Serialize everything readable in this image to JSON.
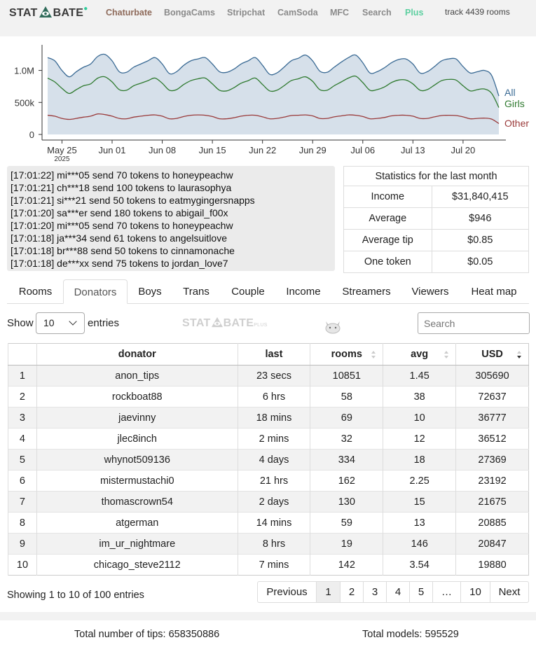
{
  "header": {
    "logo_text_left": "STAT",
    "logo_text_right": "BATE",
    "nav": [
      "Chaturbate",
      "BongaCams",
      "Stripchat",
      "CamSoda",
      "MFC",
      "Search",
      "Plus"
    ],
    "track_text": "track 4439 rooms"
  },
  "chart_data": {
    "type": "area",
    "x_ticks": [
      "May 25",
      "Jun 01",
      "Jun 08",
      "Jun 15",
      "Jun 22",
      "Jun 29",
      "Jul 06",
      "Jul 13",
      "Jul 20"
    ],
    "x_year": "2025",
    "y_ticks": [
      "1.0M",
      "500k",
      "0"
    ],
    "ylim": [
      0,
      1400000
    ],
    "x": [
      "May 23",
      "May 24",
      "May 25",
      "May 26",
      "May 27",
      "May 28",
      "May 29",
      "May 30",
      "May 31",
      "Jun 01",
      "Jun 02",
      "Jun 03",
      "Jun 04",
      "Jun 05",
      "Jun 06",
      "Jun 07",
      "Jun 08",
      "Jun 09",
      "Jun 10",
      "Jun 11",
      "Jun 12",
      "Jun 13",
      "Jun 14",
      "Jun 15",
      "Jun 16",
      "Jun 17",
      "Jun 18",
      "Jun 19",
      "Jun 20",
      "Jun 21",
      "Jun 22",
      "Jun 23",
      "Jun 24",
      "Jun 25",
      "Jun 26",
      "Jun 27",
      "Jun 28",
      "Jun 29",
      "Jun 30",
      "Jul 01",
      "Jul 02",
      "Jul 03",
      "Jul 04",
      "Jul 05",
      "Jul 06",
      "Jul 07",
      "Jul 08",
      "Jul 09",
      "Jul 10",
      "Jul 11",
      "Jul 12",
      "Jul 13",
      "Jul 14",
      "Jul 15",
      "Jul 16",
      "Jul 17",
      "Jul 18",
      "Jul 19",
      "Jul 20",
      "Jul 21",
      "Jul 22",
      "Jul 23",
      "Jul 24",
      "Jul 25"
    ],
    "series": [
      {
        "name": "All",
        "color": "#3a6a94",
        "values": [
          1200000,
          1150000,
          1000000,
          900000,
          980000,
          1050000,
          1100000,
          1220000,
          1250000,
          1150000,
          980000,
          970000,
          1050000,
          1100000,
          1150000,
          1200000,
          1100000,
          950000,
          980000,
          1080000,
          1150000,
          1180000,
          1200000,
          1100000,
          980000,
          970000,
          1020000,
          1100000,
          1150000,
          1200000,
          1080000,
          940000,
          960000,
          1050000,
          1150000,
          1190000,
          1240000,
          1150000,
          990000,
          970000,
          1050000,
          1130000,
          1200000,
          1240000,
          1120000,
          960000,
          980000,
          1040000,
          1120000,
          1170000,
          1180000,
          1100000,
          960000,
          980000,
          1060000,
          1150000,
          1180000,
          1180000,
          1060000,
          960000,
          980000,
          1000000,
          920000,
          600000
        ]
      },
      {
        "name": "Girls",
        "color": "#2f7a2f",
        "values": [
          880000,
          820000,
          720000,
          640000,
          700000,
          760000,
          790000,
          880000,
          900000,
          820000,
          700000,
          690000,
          760000,
          800000,
          840000,
          880000,
          800000,
          690000,
          700000,
          780000,
          840000,
          870000,
          880000,
          790000,
          690000,
          680000,
          730000,
          800000,
          840000,
          880000,
          780000,
          680000,
          690000,
          760000,
          840000,
          870000,
          900000,
          830000,
          700000,
          690000,
          760000,
          820000,
          880000,
          910000,
          810000,
          690000,
          700000,
          740000,
          810000,
          850000,
          850000,
          790000,
          690000,
          700000,
          770000,
          840000,
          860000,
          850000,
          760000,
          680000,
          700000,
          710000,
          640000,
          420000
        ]
      },
      {
        "name": "Other",
        "color": "#9a3a3a",
        "values": [
          300000,
          285000,
          250000,
          235000,
          250000,
          270000,
          285000,
          320000,
          310000,
          285000,
          250000,
          245000,
          270000,
          285000,
          300000,
          305000,
          285000,
          245000,
          250000,
          280000,
          300000,
          305000,
          300000,
          280000,
          245000,
          245000,
          260000,
          285000,
          300000,
          300000,
          275000,
          245000,
          250000,
          270000,
          295000,
          300000,
          305000,
          290000,
          250000,
          250000,
          275000,
          290000,
          305000,
          300000,
          280000,
          245000,
          250000,
          265000,
          290000,
          300000,
          300000,
          285000,
          250000,
          250000,
          275000,
          295000,
          300000,
          295000,
          275000,
          245000,
          250000,
          255000,
          240000,
          170000
        ]
      }
    ]
  },
  "feed": [
    "[17:01:22] mi***05 send 70 tokens to honeypeachw",
    "[17:01:21] ch***18 send 100 tokens to laurasophya",
    "[17:01:21] si***21 send 50 tokens to eatmygingersnapps",
    "[17:01:20] sa***er send 180 tokens to abigail_f00x",
    "[17:01:20] mi***05 send 70 tokens to honeypeachw",
    "[17:01:18] ja***34 send 61 tokens to angelsuitlove",
    "[17:01:18] br***88 send 50 tokens to cinnamonache",
    "[17:01:18] de***xx send 75 tokens to jordan_love7"
  ],
  "stats": {
    "title": "Statistics for the last month",
    "rows": [
      {
        "label": "Income",
        "value": "$31,840,415"
      },
      {
        "label": "Average",
        "value": "$946"
      },
      {
        "label": "Average tip",
        "value": "$0.85"
      },
      {
        "label": "One token",
        "value": "$0.05"
      }
    ]
  },
  "tabs": [
    "Rooms",
    "Donators",
    "Boys",
    "Trans",
    "Couple",
    "Income",
    "Streamers",
    "Viewers",
    "Heat map"
  ],
  "controls": {
    "show_label": "Show",
    "entries_value": "10",
    "entries_label": "entries",
    "watermark_left": "STAT",
    "watermark_right": "BATE",
    "watermark_small": "PLUS",
    "search_placeholder": "Search"
  },
  "table": {
    "columns": [
      "",
      "donator",
      "last",
      "rooms",
      "avg",
      "USD"
    ],
    "rows": [
      [
        "1",
        "anon_tips",
        "23 secs",
        "10851",
        "1.45",
        "305690"
      ],
      [
        "2",
        "rockboat88",
        "6 hrs",
        "58",
        "38",
        "72637"
      ],
      [
        "3",
        "jaevinny",
        "18 mins",
        "69",
        "10",
        "36777"
      ],
      [
        "4",
        "jlec8inch",
        "2 mins",
        "32",
        "12",
        "36512"
      ],
      [
        "5",
        "whynot509136",
        "4 days",
        "334",
        "18",
        "27369"
      ],
      [
        "6",
        "mistermustachi0",
        "21 hrs",
        "162",
        "2.25",
        "23192"
      ],
      [
        "7",
        "thomascrown54",
        "2 days",
        "130",
        "15",
        "21675"
      ],
      [
        "8",
        "atgerman",
        "14 mins",
        "59",
        "13",
        "20885"
      ],
      [
        "9",
        "im_ur_nightmare",
        "8 hrs",
        "19",
        "146",
        "20847"
      ],
      [
        "10",
        "chicago_steve2112",
        "7 mins",
        "142",
        "3.54",
        "19880"
      ]
    ]
  },
  "pagination": {
    "info": "Showing 1 to 10 of 100 entries",
    "buttons": [
      "Previous",
      "1",
      "2",
      "3",
      "4",
      "5",
      "…",
      "10",
      "Next"
    ],
    "current": "1"
  },
  "footer": {
    "tips": "Total number of tips: 658350886",
    "models": "Total models: 595529"
  },
  "colors": {
    "area_fill": "#d6e0ea",
    "nav_active": "#8e6a5a",
    "nav_plus": "#5ccfa0"
  }
}
